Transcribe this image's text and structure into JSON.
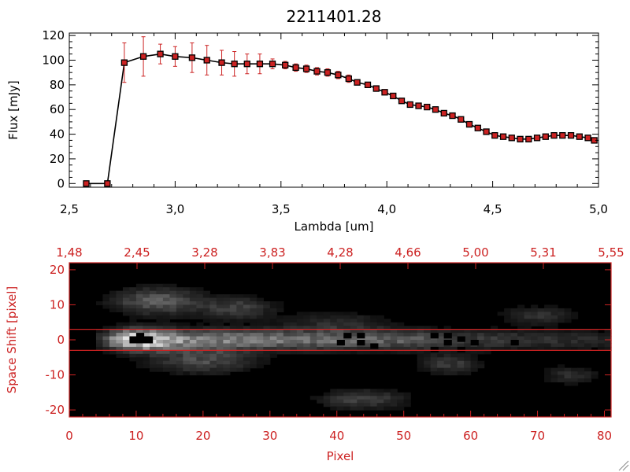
{
  "chart_data": [
    {
      "type": "line",
      "title": "2211401.28",
      "xlabel": "Lambda [um]",
      "ylabel": "Flux [mJy]",
      "xlim": [
        2.5,
        5.0
      ],
      "ylim": [
        -3,
        122
      ],
      "xticks": [
        "2.5",
        "3.0",
        "3.5",
        "4.0",
        "4.5",
        "5.0"
      ],
      "yticks": [
        "0",
        "20",
        "40",
        "60",
        "80",
        "100",
        "120"
      ],
      "colors": {
        "line": "#000000",
        "marker": "#cc2222",
        "errorbar": "#cc2222"
      },
      "series": [
        {
          "x": [
            2.58,
            2.68,
            2.76,
            2.85,
            2.93,
            3.0,
            3.08,
            3.15,
            3.22,
            3.28,
            3.34,
            3.4,
            3.46,
            3.52,
            3.57,
            3.62,
            3.67,
            3.72,
            3.77,
            3.82,
            3.86,
            3.91,
            3.95,
            3.99,
            4.03,
            4.07,
            4.11,
            4.15,
            4.19,
            4.23,
            4.27,
            4.31,
            4.35,
            4.39,
            4.43,
            4.47,
            4.51,
            4.55,
            4.59,
            4.63,
            4.67,
            4.71,
            4.75,
            4.79,
            4.83,
            4.87,
            4.91,
            4.95,
            4.98
          ],
          "y": [
            0,
            0,
            98,
            103,
            105,
            103,
            102,
            100,
            98,
            97,
            97,
            97,
            97,
            96,
            94,
            93,
            91,
            90,
            88,
            85,
            82,
            80,
            77,
            74,
            71,
            67,
            64,
            63,
            62,
            60,
            57,
            55,
            52,
            48,
            45,
            42,
            39,
            38,
            37,
            36,
            36,
            37,
            38,
            39,
            39,
            39,
            38,
            37,
            35
          ],
          "err": [
            0,
            0,
            16,
            16,
            8,
            8,
            12,
            12,
            10,
            10,
            8,
            8,
            4,
            3,
            3,
            3,
            3,
            3,
            3,
            3,
            2,
            2,
            2,
            2,
            2,
            2,
            2,
            2,
            2,
            2,
            2,
            2,
            2,
            2,
            2,
            2,
            2,
            2,
            2,
            2,
            2,
            2,
            2,
            2,
            2,
            2,
            2,
            2,
            2
          ]
        }
      ]
    },
    {
      "type": "heatmap",
      "xlabel": "Pixel",
      "ylabel": "Space Shift [pixel]",
      "xlim": [
        0,
        81
      ],
      "ylim": [
        -22,
        22
      ],
      "xticks": [
        "0",
        "10",
        "20",
        "30",
        "40",
        "50",
        "60",
        "70",
        "80"
      ],
      "yticks": [
        "-20",
        "-10",
        "0",
        "10",
        "20"
      ],
      "top_ticks": [
        "1.48",
        "2.45",
        "3.28",
        "3.83",
        "4.28",
        "4.66",
        "5.00",
        "5.31",
        "5.55"
      ],
      "extraction_lines": [
        3,
        -3
      ],
      "colors": {
        "axes": "#cc2222",
        "background": "#000000"
      }
    }
  ]
}
